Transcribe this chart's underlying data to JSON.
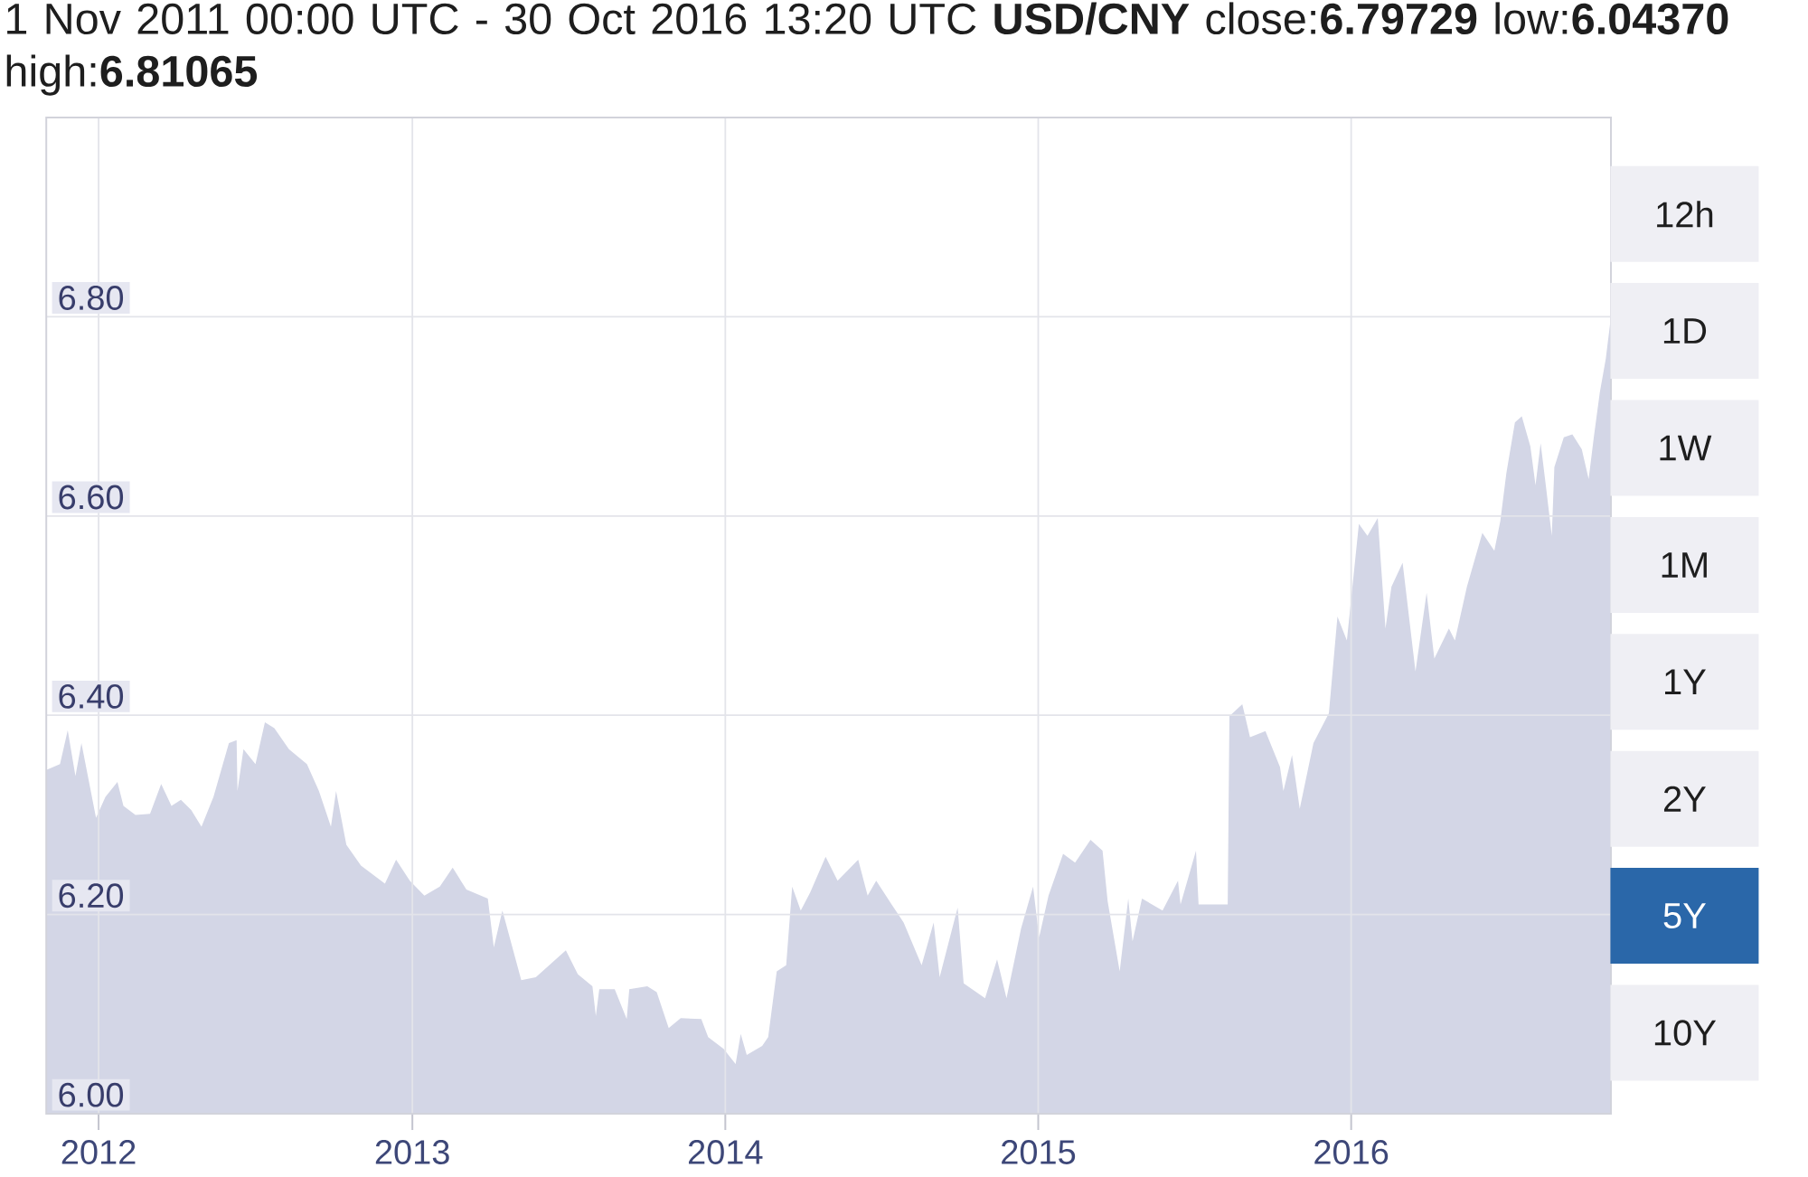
{
  "chart_data": [
    {
      "type": "area",
      "title": "1 Nov 2011 00:00 UTC - 30 Oct 2016 13:20 UTC  **USD/CNY** close:**6.79729** low:**6.04370** high:**6.81065**",
      "x": [
        "2011-11-01",
        "2011-11-17",
        "2011-11-26",
        "2011-12-05",
        "2011-12-12",
        "2011-12-29",
        "2012-01-09",
        "2012-01-23",
        "2012-01-30",
        "2012-02-13",
        "2012-03-01",
        "2012-03-14",
        "2012-03-26",
        "2012-04-06",
        "2012-04-18",
        "2012-04-30",
        "2012-05-14",
        "2012-06-01",
        "2012-06-10",
        "2012-06-11",
        "2012-06-18",
        "2012-07-02",
        "2012-07-13",
        "2012-07-24",
        "2012-08-10",
        "2012-08-31",
        "2012-09-14",
        "2012-09-28",
        "2012-10-04",
        "2012-10-16",
        "2012-11-02",
        "2012-11-30",
        "2012-12-13",
        "2012-12-29",
        "2013-01-15",
        "2013-02-02",
        "2013-02-17",
        "2013-03-05",
        "2013-03-30",
        "2013-04-06",
        "2013-04-16",
        "2013-05-08",
        "2013-05-25",
        "2013-06-29",
        "2013-07-13",
        "2013-07-30",
        "2013-08-03",
        "2013-08-07",
        "2013-08-25",
        "2013-09-08",
        "2013-09-11",
        "2013-10-02",
        "2013-10-13",
        "2013-10-27",
        "2013-11-10",
        "2013-12-04",
        "2013-12-12",
        "2013-12-30",
        "2014-01-13",
        "2014-01-19",
        "2014-01-26",
        "2014-02-13",
        "2014-02-20",
        "2014-03-02",
        "2014-03-13",
        "2014-03-20",
        "2014-03-30",
        "2014-04-10",
        "2014-04-28",
        "2014-05-12",
        "2014-06-05",
        "2014-06-16",
        "2014-06-26",
        "2014-07-14",
        "2014-07-28",
        "2014-08-18",
        "2014-09-01",
        "2014-09-08",
        "2014-09-29",
        "2014-10-06",
        "2014-10-31",
        "2014-11-14",
        "2014-11-25",
        "2014-12-12",
        "2014-12-26",
        "2015-01-02",
        "2015-01-13",
        "2015-01-30",
        "2015-02-13",
        "2015-03-03",
        "2015-03-17",
        "2015-03-23",
        "2015-04-06",
        "2015-04-16",
        "2015-04-21",
        "2015-05-02",
        "2015-05-26",
        "2015-06-13",
        "2015-06-16",
        "2015-07-04",
        "2015-07-07",
        "2015-08-10",
        "2015-08-12",
        "2015-08-27",
        "2015-09-05",
        "2015-09-23",
        "2015-10-10",
        "2015-10-14",
        "2015-10-24",
        "2015-11-02",
        "2015-11-18",
        "2015-12-06",
        "2015-12-16",
        "2015-12-27",
        "2016-01-10",
        "2016-01-20",
        "2016-02-01",
        "2016-02-10",
        "2016-02-17",
        "2016-03-01",
        "2016-03-16",
        "2016-03-29",
        "2016-04-07",
        "2016-04-24",
        "2016-05-01",
        "2016-05-15",
        "2016-06-02",
        "2016-06-16",
        "2016-06-23",
        "2016-06-30",
        "2016-07-10",
        "2016-07-18",
        "2016-07-28",
        "2016-08-03",
        "2016-08-09",
        "2016-08-15",
        "2016-08-22",
        "2016-08-25",
        "2016-09-05",
        "2016-09-15",
        "2016-09-26",
        "2016-10-04",
        "2016-10-10",
        "2016-10-17",
        "2016-10-24",
        "2016-10-30"
      ],
      "series": [
        {
          "color": "#d3d6e6",
          "values": [
            6.345,
            6.351,
            6.385,
            6.339,
            6.372,
            6.297,
            6.318,
            6.333,
            6.309,
            6.3,
            6.301,
            6.331,
            6.309,
            6.315,
            6.305,
            6.288,
            6.318,
            6.372,
            6.375,
            6.324,
            6.366,
            6.351,
            6.393,
            6.387,
            6.366,
            6.351,
            6.324,
            6.288,
            6.324,
            6.27,
            6.249,
            6.231,
            6.255,
            6.234,
            6.219,
            6.228,
            6.247,
            6.225,
            6.216,
            6.167,
            6.204,
            6.134,
            6.137,
            6.164,
            6.14,
            6.128,
            6.098,
            6.125,
            6.125,
            6.095,
            6.125,
            6.128,
            6.122,
            6.086,
            6.096,
            6.095,
            6.077,
            6.065,
            6.05,
            6.08,
            6.059,
            6.068,
            6.077,
            6.143,
            6.149,
            6.228,
            6.204,
            6.222,
            6.258,
            6.234,
            6.255,
            6.219,
            6.234,
            6.21,
            6.192,
            6.149,
            6.192,
            6.137,
            6.207,
            6.131,
            6.116,
            6.155,
            6.116,
            6.186,
            6.228,
            6.177,
            6.219,
            6.261,
            6.252,
            6.275,
            6.264,
            6.213,
            6.143,
            6.216,
            6.173,
            6.216,
            6.204,
            6.234,
            6.21,
            6.264,
            6.21,
            6.21,
            6.399,
            6.411,
            6.378,
            6.384,
            6.348,
            6.324,
            6.36,
            6.306,
            6.372,
            6.402,
            6.499,
            6.475,
            6.592,
            6.58,
            6.598,
            6.487,
            6.529,
            6.553,
            6.444,
            6.523,
            6.457,
            6.487,
            6.475,
            6.529,
            6.583,
            6.565,
            6.595,
            6.643,
            6.694,
            6.7,
            6.67,
            6.631,
            6.673,
            6.631,
            6.58,
            6.649,
            6.679,
            6.682,
            6.667,
            6.637,
            6.679,
            6.724,
            6.758,
            6.8
          ]
        }
      ],
      "xlim": [
        "2011-11-01",
        "2016-10-30"
      ],
      "ylim": [
        6,
        7
      ],
      "xticks": [
        {
          "value": "2012-01-01",
          "label": "2012"
        },
        {
          "value": "2013-01-01",
          "label": "2013"
        },
        {
          "value": "2014-01-01",
          "label": "2014"
        },
        {
          "value": "2015-01-01",
          "label": "2015"
        },
        {
          "value": "2016-01-01",
          "label": "2016"
        }
      ],
      "yticks": [
        {
          "value": 6,
          "label": "6.00"
        },
        {
          "value": 6.2,
          "label": "6.20"
        },
        {
          "value": 6.4,
          "label": "6.40"
        },
        {
          "value": 6.6,
          "label": "6.60"
        },
        {
          "value": 6.8,
          "label": "6.80"
        }
      ],
      "grid": true
    },
    {
      "type": "other",
      "categories": [
        "12h",
        "1D",
        "1W",
        "1M",
        "1Y",
        "2Y",
        "5Y",
        "10Y"
      ],
      "colors": [
        "#efeff4",
        "#efeff4",
        "#efeff4",
        "#efeff4",
        "#efeff4",
        "#efeff4",
        "#2a67a9",
        "#efeff4"
      ]
    }
  ]
}
